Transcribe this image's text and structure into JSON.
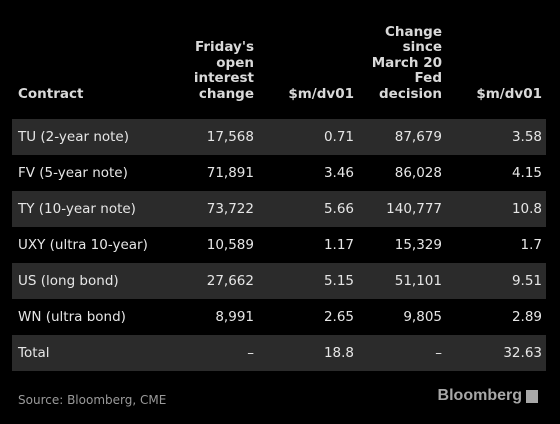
{
  "table": {
    "headers": [
      [
        "Contract"
      ],
      [
        "Friday's",
        "open",
        "interest",
        "change"
      ],
      [
        "$m/dv01"
      ],
      [
        "Change",
        "since",
        "March 20",
        "Fed",
        "decision"
      ],
      [
        "$m/dv01"
      ]
    ],
    "rows": [
      [
        "TU (2-year note)",
        "17,568",
        "0.71",
        "87,679",
        "3.58"
      ],
      [
        "FV (5-year note)",
        "71,891",
        "3.46",
        "86,028",
        "4.15"
      ],
      [
        "TY (10-year note)",
        "73,722",
        "5.66",
        "140,777",
        "10.8"
      ],
      [
        "UXY (ultra 10-year)",
        "10,589",
        "1.17",
        "15,329",
        "1.7"
      ],
      [
        "US (long bond)",
        "27,662",
        "5.15",
        "51,101",
        "9.51"
      ],
      [
        "WN (ultra bond)",
        "8,991",
        "2.65",
        "9,805",
        "2.89"
      ],
      [
        "Total",
        "–",
        "18.8",
        "–",
        "32.63"
      ]
    ]
  },
  "footer": {
    "source": "Source: Bloomberg, CME",
    "logo": "Bloomberg"
  }
}
